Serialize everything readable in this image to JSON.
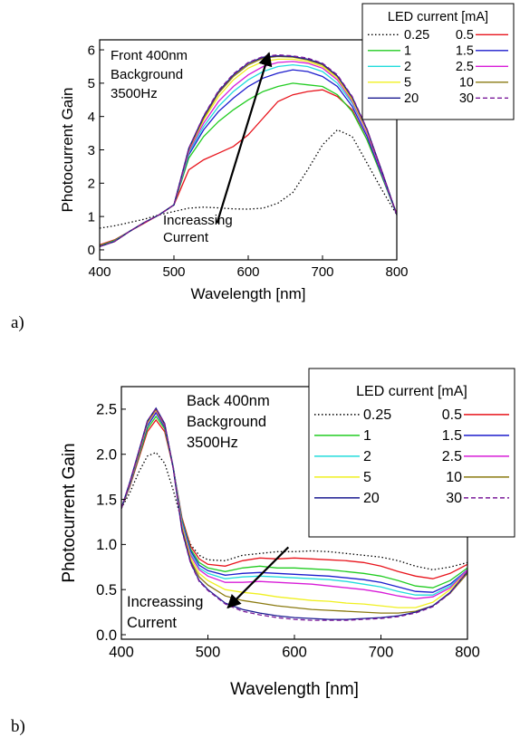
{
  "panel_labels": [
    "a)",
    "b)"
  ],
  "colors": {
    "0.25": "#000000",
    "0.5": "#e8141c",
    "1": "#22cc22",
    "1.5": "#1c1ccc",
    "2": "#22dcdc",
    "2.5": "#d81cd8",
    "5": "#f0f020",
    "10": "#8a7a10",
    "20": "#1a1a90",
    "30": "#7a1a9a"
  },
  "chart_data": [
    {
      "type": "line",
      "panel": "a)",
      "xlabel": "Wavelength [nm]",
      "ylabel": "Photocurrent Gain",
      "xlim": [
        400,
        800
      ],
      "ylim": [
        -0.3,
        6.3
      ],
      "xticks": [
        400,
        500,
        600,
        700,
        800
      ],
      "yticks": [
        0,
        1,
        2,
        3,
        4,
        5,
        6
      ],
      "annotation_lines": [
        "Front 400nm",
        "Background",
        "3500Hz"
      ],
      "arrow_label": [
        "Increassing",
        "Current"
      ],
      "arrow": {
        "from": [
          558,
          0.8
        ],
        "to": [
          628,
          5.9
        ]
      },
      "legend_title": "LED current [mA]",
      "legend_position": "top-right",
      "x": [
        400,
        420,
        440,
        460,
        480,
        500,
        520,
        540,
        560,
        580,
        600,
        620,
        640,
        660,
        680,
        700,
        720,
        740,
        760,
        780,
        800
      ],
      "series": [
        {
          "name": "0.25",
          "style": "dotted",
          "values": [
            0.65,
            0.72,
            0.82,
            0.92,
            1.05,
            1.15,
            1.25,
            1.28,
            1.26,
            1.23,
            1.22,
            1.25,
            1.4,
            1.72,
            2.4,
            3.15,
            3.6,
            3.4,
            2.6,
            1.8,
            1.05
          ]
        },
        {
          "name": "0.5",
          "style": "solid",
          "values": [
            0.15,
            0.3,
            0.55,
            0.8,
            1.05,
            1.35,
            2.4,
            2.7,
            2.9,
            3.1,
            3.45,
            3.95,
            4.45,
            4.65,
            4.75,
            4.8,
            4.6,
            4.2,
            3.3,
            2.2,
            1.1
          ]
        },
        {
          "name": "1",
          "style": "solid",
          "values": [
            0.12,
            0.28,
            0.55,
            0.82,
            1.05,
            1.35,
            2.75,
            3.4,
            3.85,
            4.2,
            4.5,
            4.75,
            4.9,
            5.0,
            4.95,
            4.9,
            4.65,
            4.15,
            3.3,
            2.2,
            1.05
          ]
        },
        {
          "name": "1.5",
          "style": "solid",
          "values": [
            0.1,
            0.26,
            0.55,
            0.82,
            1.05,
            1.35,
            2.85,
            3.6,
            4.15,
            4.55,
            4.9,
            5.15,
            5.3,
            5.4,
            5.35,
            5.2,
            4.9,
            4.3,
            3.4,
            2.25,
            1.05
          ]
        },
        {
          "name": "2",
          "style": "solid",
          "values": [
            0.1,
            0.26,
            0.55,
            0.82,
            1.05,
            1.35,
            2.9,
            3.7,
            4.3,
            4.75,
            5.1,
            5.35,
            5.5,
            5.55,
            5.5,
            5.35,
            5.0,
            4.4,
            3.5,
            2.3,
            1.05
          ]
        },
        {
          "name": "2.5",
          "style": "solid",
          "values": [
            0.1,
            0.25,
            0.55,
            0.82,
            1.05,
            1.35,
            2.95,
            3.8,
            4.45,
            4.9,
            5.25,
            5.5,
            5.62,
            5.65,
            5.6,
            5.45,
            5.1,
            4.45,
            3.5,
            2.3,
            1.05
          ]
        },
        {
          "name": "5",
          "style": "solid",
          "values": [
            0.1,
            0.25,
            0.55,
            0.82,
            1.05,
            1.35,
            3.0,
            3.9,
            4.6,
            5.1,
            5.45,
            5.65,
            5.72,
            5.72,
            5.65,
            5.5,
            5.15,
            4.5,
            3.55,
            2.35,
            1.05
          ]
        },
        {
          "name": "10",
          "style": "solid",
          "values": [
            0.1,
            0.25,
            0.55,
            0.82,
            1.05,
            1.35,
            3.02,
            3.95,
            4.7,
            5.2,
            5.55,
            5.75,
            5.8,
            5.78,
            5.7,
            5.55,
            5.2,
            4.55,
            3.6,
            2.35,
            1.05
          ]
        },
        {
          "name": "20",
          "style": "solid",
          "values": [
            0.1,
            0.25,
            0.55,
            0.82,
            1.05,
            1.35,
            3.05,
            4.0,
            4.75,
            5.25,
            5.6,
            5.78,
            5.82,
            5.8,
            5.72,
            5.58,
            5.22,
            4.58,
            3.6,
            2.35,
            1.05
          ]
        },
        {
          "name": "30",
          "style": "dashed",
          "values": [
            0.1,
            0.25,
            0.55,
            0.82,
            1.05,
            1.35,
            3.05,
            4.02,
            4.78,
            5.28,
            5.62,
            5.8,
            5.85,
            5.82,
            5.75,
            5.6,
            5.25,
            4.6,
            3.62,
            2.35,
            1.05
          ]
        }
      ]
    },
    {
      "type": "line",
      "panel": "b)",
      "xlabel": "Wavelength [nm]",
      "ylabel": "Photocurrent Gain",
      "xlim": [
        400,
        800
      ],
      "ylim": [
        -0.05,
        2.75
      ],
      "xticks": [
        400,
        500,
        600,
        700,
        800
      ],
      "yticks": [
        0.0,
        0.5,
        1.0,
        1.5,
        2.0,
        2.5
      ],
      "annotation_lines": [
        "Back 400nm",
        "Background",
        "3500Hz"
      ],
      "arrow_label": [
        "Increassing",
        "Current"
      ],
      "arrow": {
        "from": [
          593,
          0.97
        ],
        "to": [
          523,
          0.3
        ]
      },
      "legend_title": "LED current [mA]",
      "legend_position": "top-right",
      "x": [
        400,
        410,
        420,
        430,
        440,
        450,
        460,
        470,
        480,
        490,
        500,
        520,
        540,
        560,
        580,
        600,
        620,
        640,
        660,
        680,
        700,
        720,
        740,
        760,
        780,
        800
      ],
      "series": [
        {
          "name": "0.25",
          "style": "dotted",
          "values": [
            1.4,
            1.58,
            1.8,
            1.98,
            2.02,
            1.9,
            1.6,
            1.25,
            1.0,
            0.88,
            0.83,
            0.82,
            0.88,
            0.9,
            0.92,
            0.92,
            0.93,
            0.92,
            0.9,
            0.88,
            0.86,
            0.82,
            0.76,
            0.72,
            0.75,
            0.8
          ]
        },
        {
          "name": "0.5",
          "style": "solid",
          "values": [
            1.4,
            1.65,
            1.95,
            2.25,
            2.38,
            2.25,
            1.85,
            1.3,
            0.98,
            0.84,
            0.78,
            0.76,
            0.82,
            0.85,
            0.84,
            0.85,
            0.84,
            0.83,
            0.82,
            0.8,
            0.76,
            0.7,
            0.65,
            0.62,
            0.68,
            0.78
          ]
        },
        {
          "name": "1",
          "style": "solid",
          "values": [
            1.4,
            1.66,
            1.97,
            2.28,
            2.42,
            2.28,
            1.85,
            1.28,
            0.95,
            0.8,
            0.74,
            0.7,
            0.74,
            0.76,
            0.74,
            0.74,
            0.73,
            0.72,
            0.7,
            0.68,
            0.65,
            0.6,
            0.54,
            0.52,
            0.6,
            0.74
          ]
        },
        {
          "name": "1.5",
          "style": "solid",
          "values": [
            1.4,
            1.67,
            1.99,
            2.31,
            2.46,
            2.3,
            1.86,
            1.26,
            0.93,
            0.77,
            0.71,
            0.66,
            0.68,
            0.69,
            0.68,
            0.67,
            0.66,
            0.65,
            0.63,
            0.61,
            0.58,
            0.53,
            0.48,
            0.47,
            0.56,
            0.72
          ]
        },
        {
          "name": "2",
          "style": "solid",
          "values": [
            1.4,
            1.68,
            2.0,
            2.33,
            2.48,
            2.32,
            1.86,
            1.24,
            0.9,
            0.74,
            0.68,
            0.62,
            0.64,
            0.65,
            0.64,
            0.63,
            0.62,
            0.61,
            0.59,
            0.56,
            0.53,
            0.48,
            0.44,
            0.44,
            0.54,
            0.72
          ]
        },
        {
          "name": "2.5",
          "style": "solid",
          "values": [
            1.4,
            1.68,
            2.0,
            2.34,
            2.48,
            2.32,
            1.85,
            1.22,
            0.88,
            0.72,
            0.65,
            0.58,
            0.58,
            0.59,
            0.58,
            0.57,
            0.56,
            0.54,
            0.52,
            0.5,
            0.47,
            0.43,
            0.4,
            0.42,
            0.52,
            0.72
          ]
        },
        {
          "name": "5",
          "style": "solid",
          "values": [
            1.4,
            1.69,
            2.01,
            2.35,
            2.49,
            2.33,
            1.85,
            1.2,
            0.85,
            0.68,
            0.6,
            0.5,
            0.47,
            0.45,
            0.42,
            0.4,
            0.38,
            0.37,
            0.35,
            0.34,
            0.32,
            0.3,
            0.3,
            0.36,
            0.5,
            0.7
          ]
        },
        {
          "name": "10",
          "style": "solid",
          "values": [
            1.4,
            1.69,
            2.02,
            2.36,
            2.5,
            2.33,
            1.84,
            1.18,
            0.82,
            0.64,
            0.55,
            0.43,
            0.38,
            0.35,
            0.32,
            0.3,
            0.28,
            0.27,
            0.26,
            0.25,
            0.24,
            0.24,
            0.26,
            0.32,
            0.46,
            0.68
          ]
        },
        {
          "name": "20",
          "style": "solid",
          "values": [
            1.4,
            1.7,
            2.03,
            2.37,
            2.51,
            2.34,
            1.84,
            1.16,
            0.8,
            0.6,
            0.5,
            0.35,
            0.28,
            0.24,
            0.21,
            0.19,
            0.18,
            0.17,
            0.17,
            0.18,
            0.19,
            0.21,
            0.25,
            0.32,
            0.47,
            0.7
          ]
        },
        {
          "name": "30",
          "style": "dashed",
          "values": [
            1.4,
            1.7,
            2.03,
            2.37,
            2.51,
            2.34,
            1.84,
            1.15,
            0.79,
            0.59,
            0.49,
            0.34,
            0.26,
            0.22,
            0.19,
            0.17,
            0.16,
            0.16,
            0.16,
            0.17,
            0.18,
            0.2,
            0.24,
            0.31,
            0.46,
            0.7
          ]
        }
      ]
    }
  ]
}
